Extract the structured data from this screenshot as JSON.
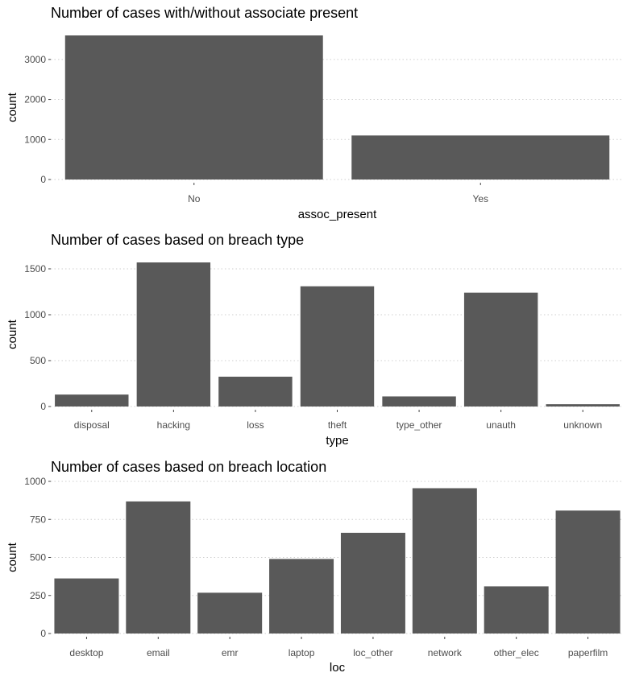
{
  "chart_data": [
    {
      "type": "bar",
      "title": "Number of cases with/without associate present",
      "xlabel": "assoc_present",
      "ylabel": "count",
      "categories": [
        "No",
        "Yes"
      ],
      "values": [
        3600,
        1100
      ],
      "ylim": [
        0,
        3600
      ],
      "yticks": [
        0,
        1000,
        2000,
        3000
      ],
      "grid": true
    },
    {
      "type": "bar",
      "title": "Number of cases based on breach type",
      "xlabel": "type",
      "ylabel": "count",
      "categories": [
        "disposal",
        "hacking",
        "loss",
        "theft",
        "type_other",
        "unauth",
        "unknown"
      ],
      "values": [
        130,
        1570,
        325,
        1310,
        110,
        1240,
        25
      ],
      "ylim": [
        0,
        1570
      ],
      "yticks": [
        0,
        500,
        1000,
        1500
      ],
      "grid": true
    },
    {
      "type": "bar",
      "title": "Number of cases based on breach location",
      "xlabel": "loc",
      "ylabel": "count",
      "categories": [
        "desktop",
        "email",
        "emr",
        "laptop",
        "loc_other",
        "network",
        "other_elec",
        "paperfilm"
      ],
      "values": [
        362,
        868,
        268,
        490,
        662,
        955,
        310,
        808
      ],
      "ylim": [
        0,
        1000
      ],
      "yticks": [
        0,
        250,
        500,
        750,
        1000
      ],
      "grid": true
    }
  ],
  "colors": {
    "bar": "#595959",
    "grid": "#cfcfcf"
  }
}
